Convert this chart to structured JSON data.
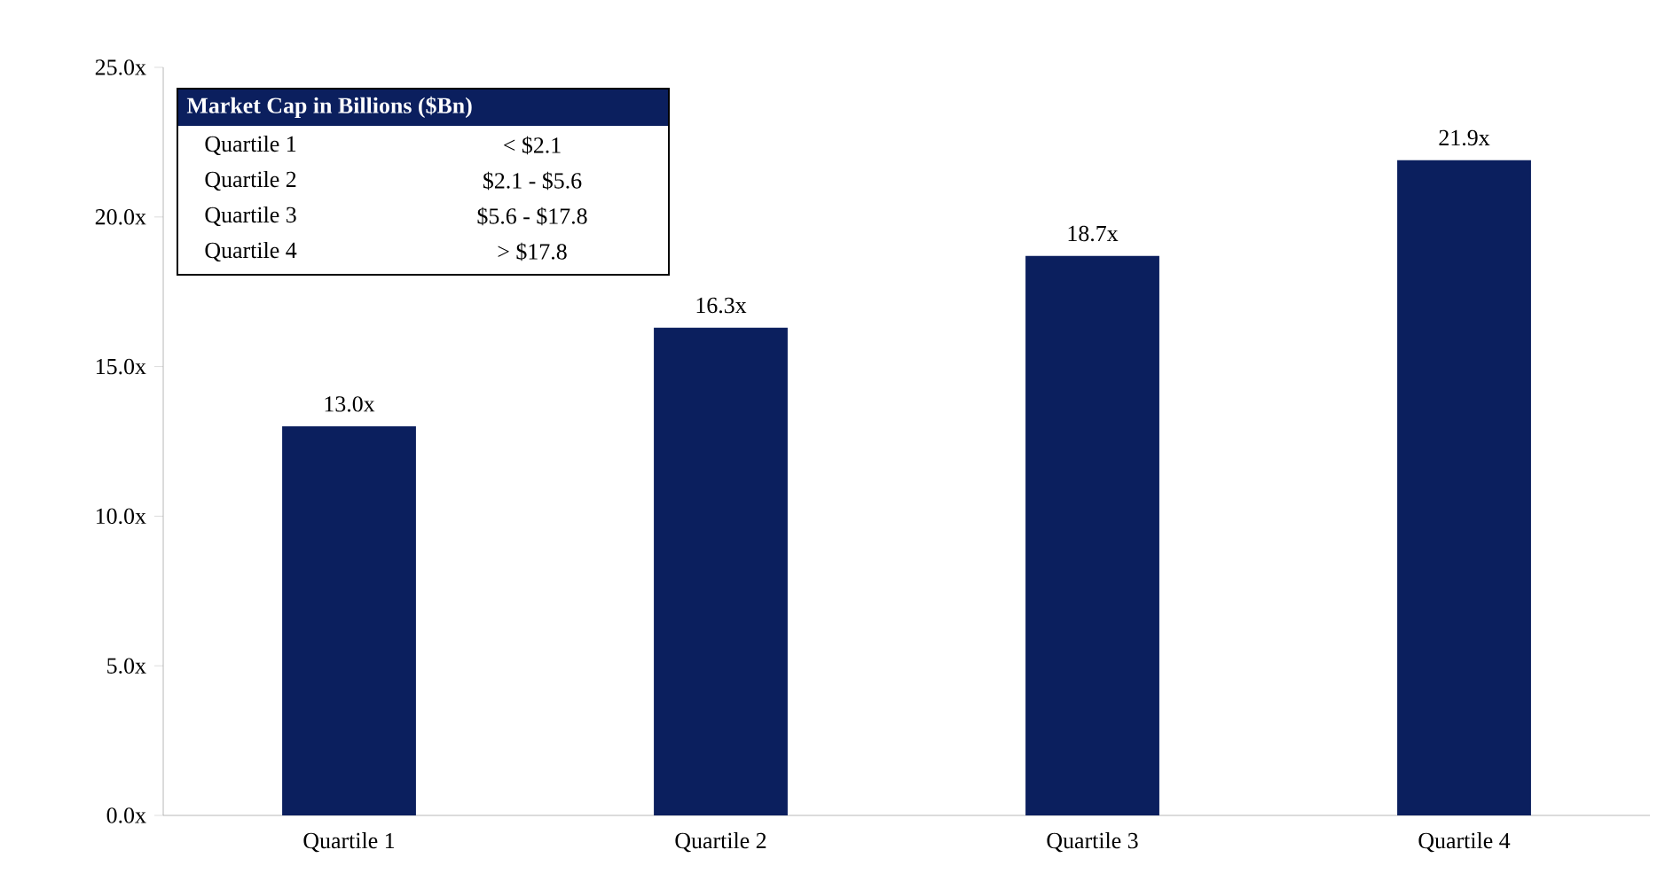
{
  "chart_data": {
    "type": "bar",
    "categories": [
      "Quartile 1",
      "Quartile 2",
      "Quartile 3",
      "Quartile 4"
    ],
    "values": [
      13.0,
      16.3,
      18.7,
      21.9
    ],
    "value_labels": [
      "13.0x",
      "16.3x",
      "18.7x",
      "21.9x"
    ],
    "color": "#0b1f5e",
    "ylim": [
      0,
      25
    ],
    "yticks": [
      {
        "value": 0,
        "label": "0.0x"
      },
      {
        "value": 5,
        "label": "5.0x"
      },
      {
        "value": 10,
        "label": "10.0x"
      },
      {
        "value": 15,
        "label": "15.0x"
      },
      {
        "value": 20,
        "label": "20.0x"
      },
      {
        "value": 25,
        "label": "25.0x"
      }
    ],
    "annotations": [
      "Market Cap in Billions ($Bn)",
      "Quartile 1",
      "< $2.1",
      "Quartile 2",
      "$2.1 - $5.6",
      "Quartile 3",
      "$5.6 - $17.8",
      "Quartile 4",
      "> $17.8"
    ]
  }
}
